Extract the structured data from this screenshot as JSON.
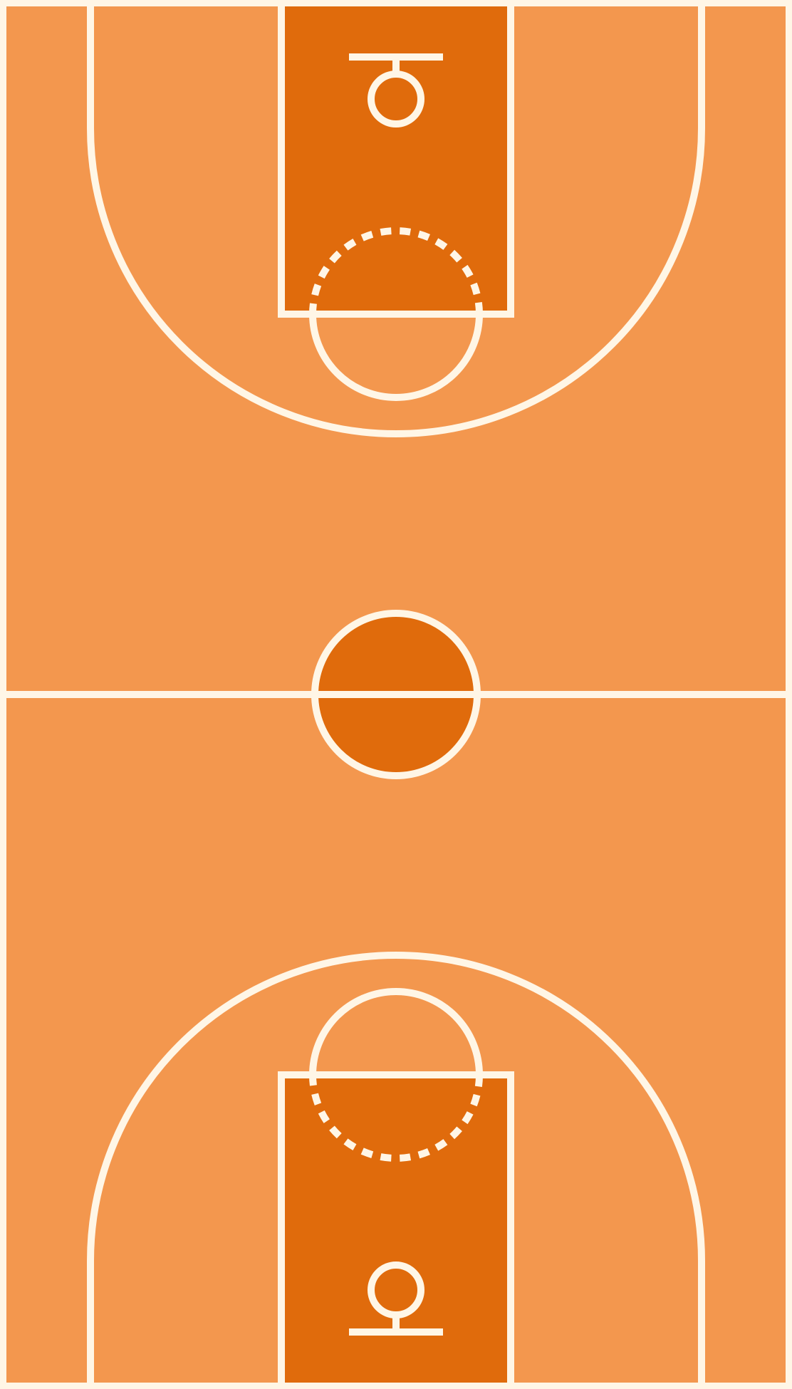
{
  "court": {
    "sport": "basketball",
    "orientation": "vertical",
    "text": [],
    "colors": {
      "floor": "#F3974E",
      "paint": "#E06B0C",
      "center_circle_fill": "#E06B0C",
      "lines": "#FFF6E6",
      "border": "#ffffff"
    }
  }
}
